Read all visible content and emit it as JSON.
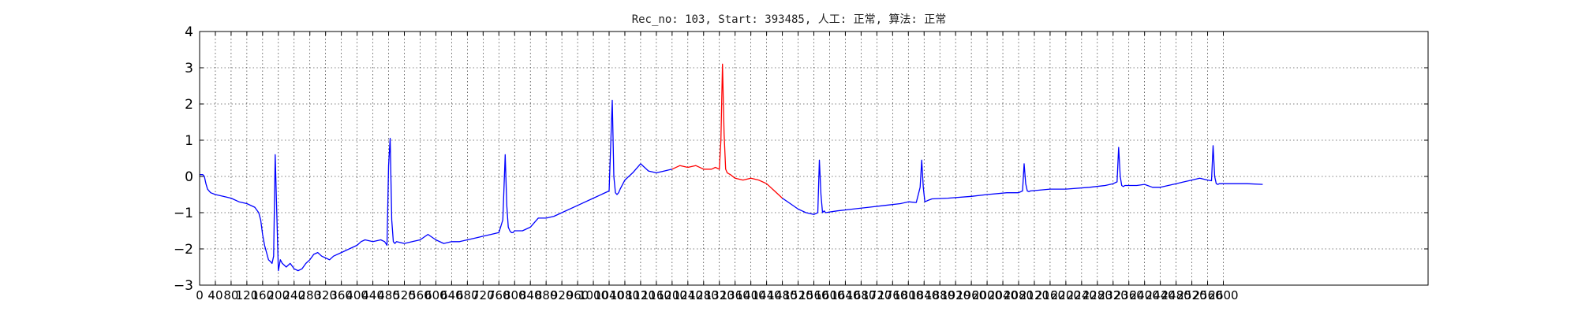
{
  "chart_data": {
    "type": "line",
    "title": "Rec_no: 103, Start: 393485, 人工: 正常, 算法: 正常",
    "xlabel": "",
    "ylabel": "",
    "xlim": [
      0,
      3120
    ],
    "ylim": [
      -3,
      4
    ],
    "grid": true,
    "x_tick_labels": [
      "0",
      "40",
      "80",
      "120",
      "160",
      "200",
      "240",
      "280",
      "320",
      "360",
      "400",
      "440",
      "480",
      "520",
      "560",
      "600",
      "640",
      "680",
      "720",
      "760",
      "800",
      "840",
      "880",
      "920",
      "960",
      "1000",
      "1040",
      "1080",
      "1120",
      "1160",
      "1200",
      "1240",
      "1280",
      "1320",
      "1360",
      "1400",
      "1440",
      "1480",
      "1520",
      "1560",
      "1600",
      "1640",
      "1680",
      "1720",
      "1760",
      "1800",
      "1840",
      "1880",
      "1920",
      "1960",
      "2000",
      "2040",
      "2080",
      "2120",
      "2160",
      "2200",
      "2240",
      "2280",
      "2320",
      "2360",
      "2400",
      "2440",
      "2480",
      "2520",
      "2560",
      "2600"
    ],
    "y_tick_labels": [
      "−3",
      "−2",
      "−1",
      "0",
      "1",
      "2",
      "3",
      "4"
    ],
    "y_tick_values": [
      -3,
      -2,
      -1,
      0,
      1,
      2,
      3,
      4
    ],
    "series": [
      {
        "color": "#0000ff",
        "x": [
          0,
          8,
          12,
          16,
          20,
          24,
          28,
          40,
          60,
          80,
          100,
          120,
          140,
          150,
          155,
          160,
          165,
          170,
          175,
          180,
          184,
          188,
          192,
          196,
          200,
          205,
          210,
          220,
          230,
          240,
          250,
          260,
          270,
          280,
          290,
          300,
          310,
          320,
          330,
          340,
          360,
          380,
          400,
          410,
          420,
          440,
          460,
          470,
          476,
          480,
          484,
          488,
          492,
          496,
          500,
          520,
          540,
          560,
          580,
          600,
          620,
          640,
          660,
          680,
          700,
          720,
          740,
          760,
          770,
          776,
          780,
          784,
          788,
          792,
          796,
          800,
          820,
          840,
          860,
          880,
          900,
          920,
          960,
          1000,
          1040,
          1048,
          1052,
          1056,
          1060,
          1064,
          1068,
          1080,
          1100,
          1120,
          1130,
          1140,
          1160,
          1180,
          1200
        ],
        "y": [
          0.05,
          0.05,
          0.0,
          -0.2,
          -0.35,
          -0.4,
          -0.45,
          -0.5,
          -0.55,
          -0.6,
          -0.7,
          -0.75,
          -0.85,
          -1.0,
          -1.2,
          -1.6,
          -1.9,
          -2.1,
          -2.3,
          -2.35,
          -2.4,
          -2.2,
          0.6,
          -1.0,
          -2.6,
          -2.3,
          -2.4,
          -2.5,
          -2.4,
          -2.55,
          -2.6,
          -2.55,
          -2.4,
          -2.3,
          -2.15,
          -2.1,
          -2.2,
          -2.25,
          -2.3,
          -2.2,
          -2.1,
          -2.0,
          -1.9,
          -1.8,
          -1.75,
          -1.8,
          -1.75,
          -1.8,
          -1.9,
          0.3,
          1.05,
          -1.2,
          -1.8,
          -1.85,
          -1.8,
          -1.85,
          -1.8,
          -1.75,
          -1.6,
          -1.75,
          -1.85,
          -1.8,
          -1.8,
          -1.75,
          -1.7,
          -1.65,
          -1.6,
          -1.55,
          -1.2,
          0.6,
          -0.8,
          -1.4,
          -1.5,
          -1.55,
          -1.55,
          -1.5,
          -1.5,
          -1.4,
          -1.15,
          -1.15,
          -1.1,
          -1.0,
          -0.8,
          -0.6,
          -0.4,
          2.1,
          0.0,
          -0.45,
          -0.5,
          -0.45,
          -0.35,
          -0.1,
          0.1,
          0.35,
          0.25,
          0.15,
          0.1,
          0.15,
          0.2
        ]
      },
      {
        "color": "#ff0000",
        "x": [
          1200,
          1220,
          1240,
          1260,
          1280,
          1300,
          1310,
          1320,
          1324,
          1328,
          1332,
          1336,
          1340,
          1348,
          1360,
          1380,
          1400,
          1420,
          1440,
          1460,
          1480
        ],
        "y": [
          0.2,
          0.3,
          0.25,
          0.3,
          0.2,
          0.2,
          0.25,
          0.2,
          1.0,
          3.1,
          1.2,
          0.2,
          0.1,
          0.05,
          -0.05,
          -0.1,
          -0.05,
          -0.1,
          -0.2,
          -0.4,
          -0.6
        ]
      },
      {
        "color": "#0000ff",
        "x": [
          1480,
          1500,
          1520,
          1540,
          1560,
          1570,
          1574,
          1578,
          1582,
          1586,
          1590,
          1600,
          1620,
          1660,
          1700,
          1740,
          1780,
          1800,
          1820,
          1830,
          1834,
          1838,
          1842,
          1846,
          1850,
          1860,
          1900,
          1960,
          2000,
          2050,
          2080,
          2090,
          2094,
          2098,
          2102,
          2106,
          2110,
          2130,
          2160,
          2200,
          2260,
          2300,
          2320,
          2330,
          2334,
          2338,
          2342,
          2346,
          2350,
          2380,
          2400,
          2420,
          2440,
          2460,
          2480,
          2500,
          2520,
          2540,
          2560,
          2570,
          2574,
          2578,
          2582,
          2586,
          2590,
          2620,
          2650,
          2660,
          2700
        ],
        "y": [
          -0.6,
          -0.75,
          -0.9,
          -1.0,
          -1.05,
          -1.0,
          0.45,
          -0.5,
          -1.0,
          -0.95,
          -1.0,
          -0.98,
          -0.95,
          -0.9,
          -0.85,
          -0.8,
          -0.75,
          -0.7,
          -0.72,
          -0.3,
          0.45,
          -0.3,
          -0.7,
          -0.68,
          -0.66,
          -0.62,
          -0.6,
          -0.55,
          -0.5,
          -0.45,
          -0.45,
          -0.4,
          0.35,
          -0.2,
          -0.4,
          -0.42,
          -0.4,
          -0.38,
          -0.35,
          -0.35,
          -0.3,
          -0.25,
          -0.2,
          -0.15,
          0.8,
          0.0,
          -0.25,
          -0.28,
          -0.25,
          -0.25,
          -0.22,
          -0.3,
          -0.3,
          -0.25,
          -0.2,
          -0.15,
          -0.1,
          -0.05,
          -0.1,
          -0.12,
          0.85,
          0.0,
          -0.2,
          -0.22,
          -0.2,
          -0.2,
          -0.2,
          -0.2,
          -0.22
        ]
      }
    ]
  }
}
